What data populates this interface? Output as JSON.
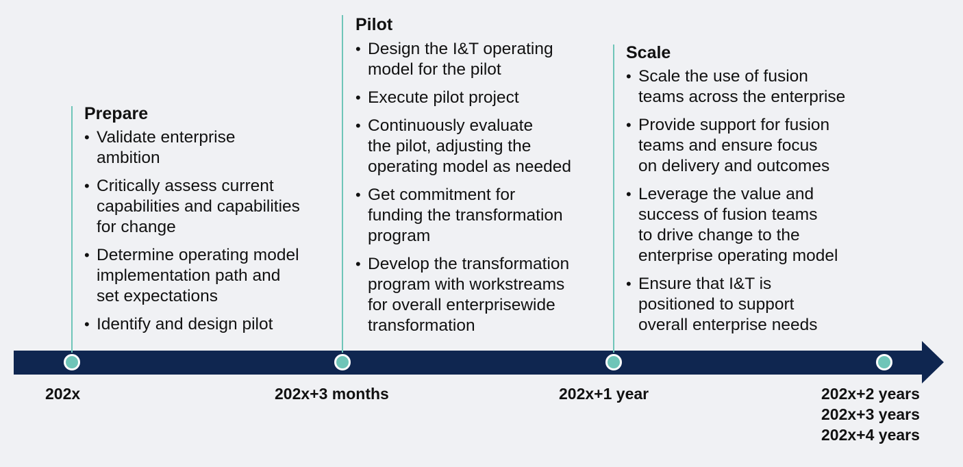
{
  "colors": {
    "background": "#f0f1f4",
    "arrow": "#0f2650",
    "accent": "#6fc5b8",
    "text": "#111111"
  },
  "phases": [
    {
      "title": "Prepare",
      "items": [
        "Validate enterprise\nambition",
        "Critically assess current\ncapabilities and capabilities\nfor change",
        "Determine operating model\nimplementation path and\nset expectations",
        "Identify and design pilot"
      ]
    },
    {
      "title": "Pilot",
      "items": [
        "Design the I&T operating\nmodel for the pilot",
        "Execute pilot project",
        "Continuously evaluate\nthe pilot, adjusting the\noperating model as needed",
        "Get commitment for\nfunding the transformation\nprogram",
        "Develop the transformation\nprogram with workstreams\nfor overall enterprisewide\ntransformation"
      ]
    },
    {
      "title": "Scale",
      "items": [
        "Scale the use of fusion\nteams across the enterprise",
        "Provide support for fusion\nteams and ensure focus\non delivery and outcomes",
        "Leverage the value and\nsuccess of fusion teams\nto drive change to the\nenterprise operating model",
        "Ensure that I&T is\npositioned to support\noverall enterprise needs"
      ]
    }
  ],
  "milestones": [
    {
      "label": "202x"
    },
    {
      "label": "202x+3 months"
    },
    {
      "label": "202x+1 year"
    },
    {
      "label": "202x+2 years\n202x+3 years\n202x+4 years"
    }
  ]
}
